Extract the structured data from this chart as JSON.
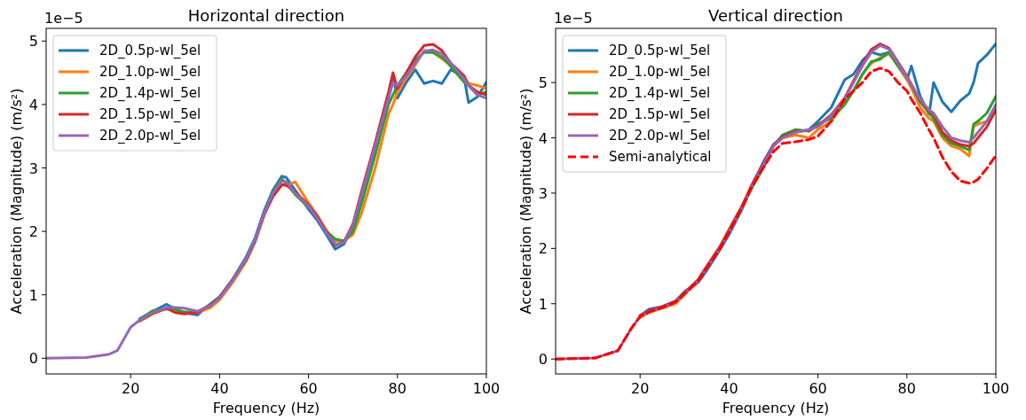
{
  "chart_data": [
    {
      "type": "line",
      "title": "Horizontal direction",
      "xlabel": "Frequency (Hz)",
      "ylabel": "Acceleration (Magnitude) (m/s²)",
      "annotations": [
        "1e−5"
      ],
      "xlim": [
        1,
        100
      ],
      "xticks": [
        20,
        40,
        60,
        80,
        100
      ],
      "ylim": [
        -0.247,
        5.2
      ],
      "yticks": [
        0,
        1,
        2,
        3,
        4,
        5
      ],
      "grid": false,
      "legend": "top left",
      "x": [
        1,
        10,
        15,
        17,
        20,
        22,
        25,
        28,
        30,
        32,
        35,
        38,
        40,
        43,
        46,
        48,
        50,
        52,
        54,
        55,
        57,
        60,
        62,
        64,
        66,
        68,
        70,
        72,
        75,
        78,
        79,
        80,
        82,
        84,
        86,
        88,
        90,
        92,
        95,
        96,
        98,
        100
      ],
      "series": [
        {
          "name": "2D_0.5p-wl_5el",
          "color": "#1f77b4",
          "values": [
            null,
            null,
            null,
            null,
            null,
            0.62,
            0.74,
            0.85,
            0.78,
            0.72,
            0.68,
            0.86,
            0.97,
            1.25,
            1.6,
            1.9,
            2.32,
            2.65,
            2.87,
            2.85,
            2.65,
            2.35,
            2.17,
            1.95,
            1.72,
            1.8,
            2.08,
            2.58,
            3.33,
            4.1,
            4.45,
            4.1,
            4.35,
            4.55,
            4.33,
            4.37,
            4.33,
            4.55,
            4.42,
            4.03,
            4.12,
            4.35
          ]
        },
        {
          "name": "2D_1.0p-wl_5el",
          "color": "#ff7f0e",
          "values": [
            null,
            null,
            null,
            null,
            null,
            0.58,
            0.7,
            0.78,
            0.76,
            0.72,
            0.72,
            0.8,
            0.92,
            1.2,
            1.53,
            1.83,
            2.25,
            2.58,
            2.75,
            2.72,
            2.78,
            2.45,
            2.25,
            2.02,
            1.85,
            1.85,
            1.95,
            2.3,
            3.0,
            3.85,
            4.0,
            4.2,
            4.42,
            4.62,
            4.85,
            4.82,
            4.72,
            4.62,
            4.42,
            4.33,
            4.3,
            4.25
          ]
        },
        {
          "name": "2D_1.4p-wl_5el",
          "color": "#2ca02c",
          "values": [
            null,
            null,
            null,
            null,
            null,
            0.61,
            0.75,
            0.78,
            0.77,
            0.73,
            0.73,
            0.85,
            0.96,
            1.25,
            1.55,
            1.85,
            2.3,
            2.62,
            2.83,
            2.76,
            2.58,
            2.38,
            null,
            2.0,
            1.88,
            1.85,
            2.0,
            2.45,
            3.2,
            4.0,
            4.15,
            4.3,
            4.5,
            4.7,
            4.82,
            4.82,
            4.75,
            4.6,
            4.35,
            4.3,
            4.15,
            4.2
          ]
        },
        {
          "name": "2D_1.5p-wl_5el",
          "color": "#d62728",
          "values": [
            null,
            null,
            null,
            null,
            null,
            0.59,
            0.71,
            0.79,
            0.72,
            0.7,
            0.72,
            0.84,
            0.96,
            1.24,
            1.56,
            1.86,
            2.26,
            2.55,
            2.73,
            2.73,
            2.62,
            2.42,
            2.23,
            2.0,
            1.78,
            1.84,
            2.12,
            2.65,
            3.4,
            4.2,
            4.5,
            4.25,
            4.5,
            4.75,
            4.93,
            4.95,
            4.85,
            4.65,
            4.45,
            4.3,
            4.2,
            4.15
          ]
        },
        {
          "name": "2D_2.0p-wl_5el",
          "color": "#9467bd",
          "values": [
            0,
            0.01,
            0.06,
            0.12,
            0.49,
            0.6,
            0.72,
            0.8,
            0.8,
            0.79,
            0.74,
            0.83,
            0.95,
            1.23,
            1.57,
            1.87,
            2.28,
            2.6,
            2.8,
            2.78,
            2.6,
            2.4,
            2.2,
            1.98,
            1.8,
            1.82,
            2.1,
            2.6,
            3.35,
            4.1,
            4.35,
            4.3,
            4.45,
            4.65,
            4.84,
            4.86,
            4.8,
            4.65,
            4.4,
            4.3,
            4.15,
            4.1
          ]
        }
      ]
    },
    {
      "type": "line",
      "title": "Vertical direction",
      "xlabel": "Frequency (Hz)",
      "ylabel": "Acceleration (Magnitude) (m/s²)",
      "annotations": [
        "1e−5"
      ],
      "xlim": [
        1,
        100
      ],
      "xticks": [
        20,
        40,
        60,
        80,
        100
      ],
      "ylim": [
        -0.27,
        5.98
      ],
      "yticks": [
        0,
        1,
        2,
        3,
        4,
        5
      ],
      "grid": false,
      "legend": "top left",
      "x": [
        1,
        10,
        15,
        18,
        20,
        22,
        25,
        28,
        30,
        33,
        35,
        38,
        40,
        43,
        45,
        48,
        50,
        52,
        55,
        58,
        60,
        63,
        66,
        68,
        70,
        72,
        74,
        76,
        78,
        80,
        81,
        83,
        85,
        86,
        88,
        90,
        92,
        94,
        95,
        96,
        98,
        100
      ],
      "series": [
        {
          "name": "2D_0.5p-wl_5el",
          "color": "#1f77b4",
          "values": [
            null,
            null,
            null,
            null,
            0.78,
            0.9,
            0.95,
            1.05,
            1.22,
            1.38,
            1.6,
            1.98,
            2.25,
            2.72,
            3.12,
            3.6,
            3.88,
            4.0,
            4.1,
            4.15,
            4.3,
            4.55,
            5.05,
            5.15,
            5.4,
            5.55,
            5.5,
            5.55,
            5.3,
            5.05,
            5.3,
            4.75,
            4.43,
            5.0,
            4.65,
            4.47,
            4.67,
            4.8,
            5.0,
            5.35,
            5.5,
            5.7
          ]
        },
        {
          "name": "2D_1.0p-wl_5el",
          "color": "#ff7f0e",
          "values": [
            null,
            null,
            null,
            null,
            0.75,
            0.84,
            0.92,
            1.0,
            1.16,
            1.42,
            1.67,
            2.03,
            2.33,
            2.78,
            3.08,
            3.52,
            3.85,
            4.0,
            4.05,
            4.0,
            4.15,
            4.3,
            4.65,
            4.85,
            5.15,
            5.35,
            5.45,
            5.52,
            5.3,
            5.05,
            4.9,
            4.55,
            4.35,
            4.3,
            4.0,
            3.85,
            3.8,
            3.67,
            4.2,
            4.25,
            4.3,
            4.5
          ]
        },
        {
          "name": "2D_1.4p-wl_5el",
          "color": "#2ca02c",
          "values": [
            null,
            null,
            null,
            null,
            null,
            null,
            null,
            null,
            null,
            null,
            null,
            null,
            2.31,
            2.74,
            3.07,
            3.5,
            3.85,
            4.05,
            4.15,
            4.12,
            4.25,
            4.35,
            4.6,
            4.85,
            5.15,
            5.38,
            5.42,
            5.55,
            5.3,
            5.1,
            4.95,
            4.65,
            4.45,
            4.35,
            4.05,
            3.9,
            3.85,
            3.78,
            4.25,
            4.3,
            4.45,
            4.75
          ]
        },
        {
          "name": "2D_1.5p-wl_5el",
          "color": "#d62728",
          "values": [
            null,
            null,
            null,
            null,
            0.79,
            0.87,
            0.95,
            1.04,
            1.2,
            1.43,
            1.68,
            2.04,
            2.34,
            2.78,
            3.13,
            3.58,
            3.87,
            4.02,
            4.12,
            4.13,
            4.22,
            4.42,
            4.72,
            5.03,
            5.33,
            5.6,
            5.7,
            5.62,
            5.37,
            5.12,
            4.97,
            4.68,
            4.48,
            4.43,
            4.1,
            3.95,
            3.88,
            3.85,
            3.9,
            4.0,
            4.2,
            4.5
          ]
        },
        {
          "name": "2D_2.0p-wl_5el",
          "color": "#9467bd",
          "values": [
            0,
            0.02,
            0.15,
            0.55,
            0.77,
            0.85,
            0.93,
            1.03,
            1.18,
            1.4,
            1.65,
            2.0,
            2.3,
            2.75,
            3.1,
            3.55,
            3.85,
            4.0,
            4.1,
            4.15,
            4.2,
            4.4,
            4.7,
            5.0,
            5.3,
            5.55,
            5.67,
            5.6,
            5.35,
            5.1,
            4.95,
            4.7,
            4.5,
            4.45,
            4.2,
            4.0,
            3.95,
            3.92,
            4.0,
            4.1,
            4.3,
            4.6
          ]
        },
        {
          "name": "Semi-analytical",
          "color": "#ff0000",
          "line_style": "dashed",
          "values": [
            0,
            0.02,
            0.15,
            0.55,
            0.77,
            0.85,
            0.93,
            1.03,
            1.18,
            1.4,
            1.65,
            2.0,
            2.3,
            2.75,
            3.1,
            3.5,
            3.75,
            3.9,
            3.93,
            3.97,
            4.03,
            4.3,
            4.7,
            4.85,
            5.0,
            5.2,
            5.26,
            5.2,
            5.0,
            4.85,
            4.7,
            4.45,
            4.14,
            4.0,
            3.65,
            3.39,
            3.22,
            3.18,
            3.2,
            3.25,
            3.45,
            3.68
          ]
        }
      ]
    }
  ]
}
